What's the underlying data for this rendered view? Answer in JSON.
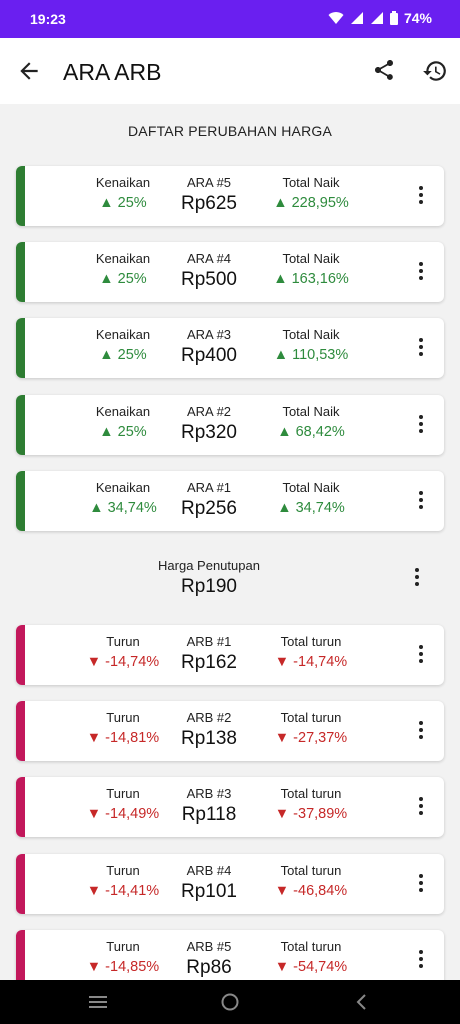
{
  "status": {
    "time": "19:23",
    "battery": "74%"
  },
  "appbar": {
    "title": "ARA ARB"
  },
  "section_title": "DAFTAR PERUBAHAN HARGA",
  "colors": {
    "status_bar": "#6a1ff0",
    "ara_accent": "#2e7d32",
    "arb_accent": "#c2185b",
    "up_text": "#2e8b3d",
    "down_text": "#c62828"
  },
  "ara": [
    {
      "change_label": "Kenaikan",
      "change": "▲ 25%",
      "name": "ARA #5",
      "price": "Rp625",
      "total_label": "Total Naik",
      "total": "▲ 228,95%"
    },
    {
      "change_label": "Kenaikan",
      "change": "▲ 25%",
      "name": "ARA #4",
      "price": "Rp500",
      "total_label": "Total Naik",
      "total": "▲ 163,16%"
    },
    {
      "change_label": "Kenaikan",
      "change": "▲ 25%",
      "name": "ARA #3",
      "price": "Rp400",
      "total_label": "Total Naik",
      "total": "▲ 110,53%"
    },
    {
      "change_label": "Kenaikan",
      "change": "▲ 25%",
      "name": "ARA #2",
      "price": "Rp320",
      "total_label": "Total Naik",
      "total": "▲ 68,42%"
    },
    {
      "change_label": "Kenaikan",
      "change": "▲ 34,74%",
      "name": "ARA #1",
      "price": "Rp256",
      "total_label": "Total Naik",
      "total": "▲ 34,74%"
    }
  ],
  "closing": {
    "label": "Harga Penutupan",
    "price": "Rp190"
  },
  "arb": [
    {
      "change_label": "Turun",
      "change": "▼ -14,74%",
      "name": "ARB #1",
      "price": "Rp162",
      "total_label": "Total turun",
      "total": "▼ -14,74%"
    },
    {
      "change_label": "Turun",
      "change": "▼ -14,81%",
      "name": "ARB #2",
      "price": "Rp138",
      "total_label": "Total turun",
      "total": "▼ -27,37%"
    },
    {
      "change_label": "Turun",
      "change": "▼ -14,49%",
      "name": "ARB #3",
      "price": "Rp118",
      "total_label": "Total turun",
      "total": "▼ -37,89%"
    },
    {
      "change_label": "Turun",
      "change": "▼ -14,41%",
      "name": "ARB #4",
      "price": "Rp101",
      "total_label": "Total turun",
      "total": "▼ -46,84%"
    },
    {
      "change_label": "Turun",
      "change": "▼ -14,85%",
      "name": "ARB #5",
      "price": "Rp86",
      "total_label": "Total turun",
      "total": "▼ -54,74%"
    }
  ]
}
